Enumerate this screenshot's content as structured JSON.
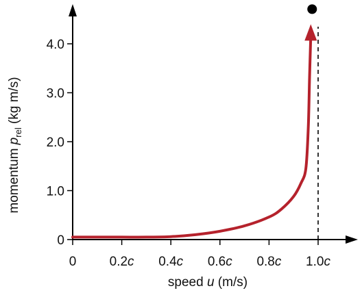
{
  "chart_data": {
    "type": "line",
    "xlabel": {
      "prefix": "speed ",
      "variable": "u",
      "suffix": " (m/s)"
    },
    "ylabel": {
      "prefix": "momentum ",
      "variable": "p",
      "subscript": "rel",
      "suffix": " (kg m/s)"
    },
    "x_ticks": [
      {
        "value": 0,
        "number": "0",
        "unit": ""
      },
      {
        "value": 0.2,
        "number": "0.2",
        "unit": "c"
      },
      {
        "value": 0.4,
        "number": "0.4",
        "unit": "c"
      },
      {
        "value": 0.6,
        "number": "0.6",
        "unit": "c"
      },
      {
        "value": 0.8,
        "number": "0.8",
        "unit": "c"
      },
      {
        "value": 1.0,
        "number": "1.0",
        "unit": "c"
      }
    ],
    "y_ticks": [
      {
        "value": 0,
        "label": "0"
      },
      {
        "value": 1.0,
        "label": "1.0"
      },
      {
        "value": 2.0,
        "label": "2.0"
      },
      {
        "value": 3.0,
        "label": "3.0"
      },
      {
        "value": 4.0,
        "label": "4.0"
      }
    ],
    "xlim": [
      0,
      1.15
    ],
    "ylim": [
      0,
      4.8
    ],
    "asymptote_x": 1.0,
    "series": [
      {
        "color": "#b5222c",
        "x": [
          0,
          0.1,
          0.2,
          0.3,
          0.4,
          0.5,
          0.6,
          0.7,
          0.8,
          0.85,
          0.9,
          0.93,
          0.95,
          0.96,
          0.965,
          0.97
        ],
        "y": [
          0.05,
          0.05,
          0.05,
          0.05,
          0.06,
          0.1,
          0.17,
          0.28,
          0.46,
          0.62,
          0.88,
          1.15,
          1.45,
          2.3,
          3.3,
          4.4
        ]
      }
    ],
    "endpoint_marker": {
      "x": 0.97,
      "y": 4.75,
      "color": "#000000"
    },
    "colors": {
      "axis": "#000000",
      "curve": "#b5222c",
      "asymptote": "#000000"
    }
  }
}
